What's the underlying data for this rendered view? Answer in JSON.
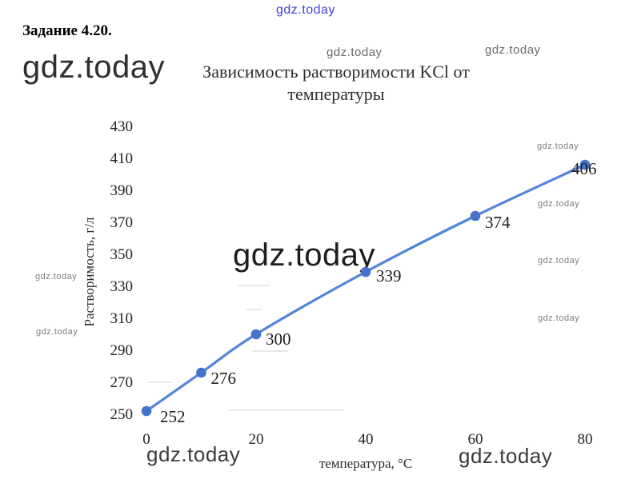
{
  "task": {
    "label": "Задание 4.20."
  },
  "watermark": {
    "text": "gdz.today"
  },
  "chart_data": {
    "type": "line",
    "title": "Зависимость растворимости KCl от температуры",
    "title_lines": [
      "Зависимость растворимости KCl от",
      "температуры"
    ],
    "xlabel": "температура, °С",
    "ylabel": "Растворимость, г/л",
    "x": [
      0,
      10,
      20,
      40,
      60,
      80
    ],
    "values": [
      252,
      276,
      300,
      339,
      374,
      406
    ],
    "point_labels": [
      "252",
      "276",
      "300",
      "339",
      "374",
      "406"
    ],
    "x_ticks": [
      0,
      20,
      40,
      60,
      80
    ],
    "y_ticks": [
      430,
      410,
      390,
      370,
      350,
      330,
      310,
      290,
      270,
      250
    ],
    "xlim": [
      0,
      80
    ],
    "ylim": [
      250,
      430
    ],
    "line_color": "#5585da",
    "marker_color": "#4473cb",
    "grid": "off",
    "legend": "none"
  }
}
